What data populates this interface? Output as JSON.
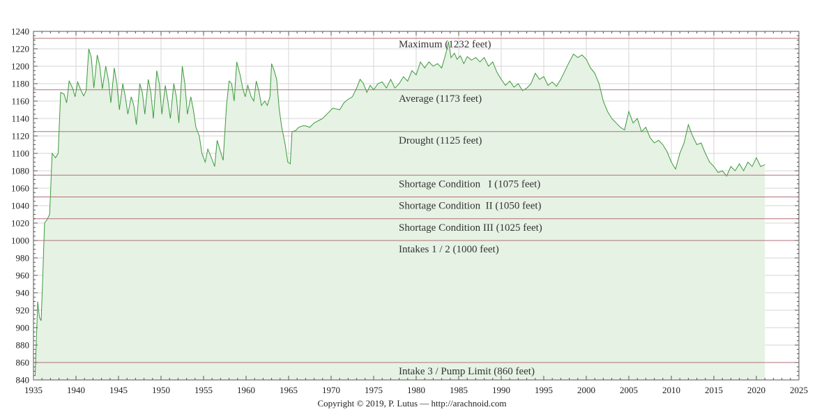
{
  "chart_data": {
    "type": "area",
    "title": "",
    "xlabel": "",
    "ylabel": "",
    "xlim": [
      1935,
      2025
    ],
    "ylim": [
      840,
      1240
    ],
    "x_ticks": [
      1935,
      1940,
      1945,
      1950,
      1955,
      1960,
      1965,
      1970,
      1975,
      1980,
      1985,
      1990,
      1995,
      2000,
      2005,
      2010,
      2015,
      2020,
      2025
    ],
    "y_ticks": [
      840,
      860,
      880,
      900,
      920,
      940,
      960,
      980,
      1000,
      1020,
      1040,
      1060,
      1080,
      1100,
      1120,
      1140,
      1160,
      1180,
      1200,
      1220,
      1240
    ],
    "grid": true,
    "line_color": "#3c9a3c",
    "fill_color": "#e6f2e4",
    "reference_line_color": "#b07078",
    "reference_lines": [
      {
        "value": 1232,
        "label": "Maximum (1232 feet)"
      },
      {
        "value": 1173,
        "label": "Average (1173 feet)"
      },
      {
        "value": 1125,
        "label": "Drought (1125 feet)"
      },
      {
        "value": 1075,
        "label": "Shortage Condition   I (1075 feet)"
      },
      {
        "value": 1050,
        "label": "Shortage Condition  II (1050 feet)"
      },
      {
        "value": 1025,
        "label": "Shortage Condition III (1025 feet)"
      },
      {
        "value": 1000,
        "label": "Intakes 1 / 2 (1000 feet)"
      },
      {
        "value": 860,
        "label": "Intake 3 / Pump Limit (860 feet)"
      }
    ],
    "series": [
      {
        "points": [
          [
            1935.2,
            845
          ],
          [
            1935.5,
            930
          ],
          [
            1935.7,
            912
          ],
          [
            1935.9,
            908
          ],
          [
            1936.1,
            960
          ],
          [
            1936.3,
            1020
          ],
          [
            1936.6,
            1024
          ],
          [
            1936.9,
            1030
          ],
          [
            1937.2,
            1100
          ],
          [
            1937.6,
            1095
          ],
          [
            1937.9,
            1100
          ],
          [
            1938.2,
            1170
          ],
          [
            1938.6,
            1168
          ],
          [
            1938.9,
            1158
          ],
          [
            1939.2,
            1183
          ],
          [
            1939.6,
            1175
          ],
          [
            1939.9,
            1165
          ],
          [
            1940.2,
            1182
          ],
          [
            1940.6,
            1172
          ],
          [
            1940.9,
            1166
          ],
          [
            1941.2,
            1172
          ],
          [
            1941.5,
            1220
          ],
          [
            1941.8,
            1210
          ],
          [
            1942.1,
            1175
          ],
          [
            1942.5,
            1213
          ],
          [
            1942.8,
            1200
          ],
          [
            1943.1,
            1174
          ],
          [
            1943.5,
            1200
          ],
          [
            1943.8,
            1185
          ],
          [
            1944.1,
            1158
          ],
          [
            1944.5,
            1198
          ],
          [
            1944.8,
            1180
          ],
          [
            1945.1,
            1150
          ],
          [
            1945.5,
            1180
          ],
          [
            1945.8,
            1165
          ],
          [
            1946.1,
            1145
          ],
          [
            1946.5,
            1165
          ],
          [
            1946.8,
            1155
          ],
          [
            1947.1,
            1133
          ],
          [
            1947.5,
            1180
          ],
          [
            1947.8,
            1170
          ],
          [
            1948.1,
            1145
          ],
          [
            1948.5,
            1185
          ],
          [
            1948.8,
            1170
          ],
          [
            1949.1,
            1140
          ],
          [
            1949.5,
            1195
          ],
          [
            1949.8,
            1180
          ],
          [
            1950.1,
            1145
          ],
          [
            1950.5,
            1178
          ],
          [
            1950.8,
            1160
          ],
          [
            1951.1,
            1140
          ],
          [
            1951.5,
            1180
          ],
          [
            1951.8,
            1165
          ],
          [
            1952.1,
            1135
          ],
          [
            1952.5,
            1200
          ],
          [
            1952.8,
            1180
          ],
          [
            1953.1,
            1145
          ],
          [
            1953.5,
            1165
          ],
          [
            1953.8,
            1150
          ],
          [
            1954.1,
            1130
          ],
          [
            1954.5,
            1120
          ],
          [
            1954.8,
            1100
          ],
          [
            1955.2,
            1090
          ],
          [
            1955.5,
            1105
          ],
          [
            1955.8,
            1098
          ],
          [
            1956.3,
            1085
          ],
          [
            1956.6,
            1115
          ],
          [
            1956.9,
            1105
          ],
          [
            1957.3,
            1092
          ],
          [
            1957.7,
            1155
          ],
          [
            1958.0,
            1183
          ],
          [
            1958.3,
            1180
          ],
          [
            1958.6,
            1160
          ],
          [
            1958.9,
            1205
          ],
          [
            1959.3,
            1190
          ],
          [
            1959.6,
            1175
          ],
          [
            1959.9,
            1165
          ],
          [
            1960.2,
            1178
          ],
          [
            1960.6,
            1165
          ],
          [
            1960.9,
            1160
          ],
          [
            1961.2,
            1183
          ],
          [
            1961.5,
            1172
          ],
          [
            1961.8,
            1155
          ],
          [
            1962.2,
            1160
          ],
          [
            1962.5,
            1155
          ],
          [
            1962.8,
            1165
          ],
          [
            1963.0,
            1203
          ],
          [
            1963.3,
            1195
          ],
          [
            1963.6,
            1185
          ],
          [
            1963.9,
            1150
          ],
          [
            1964.2,
            1130
          ],
          [
            1964.6,
            1110
          ],
          [
            1964.9,
            1090
          ],
          [
            1965.2,
            1088
          ],
          [
            1965.4,
            1125
          ],
          [
            1965.8,
            1126
          ],
          [
            1966.2,
            1130
          ],
          [
            1966.8,
            1132
          ],
          [
            1967.5,
            1130
          ],
          [
            1968,
            1135
          ],
          [
            1969,
            1140
          ],
          [
            1969.5,
            1145
          ],
          [
            1970.2,
            1152
          ],
          [
            1971,
            1150
          ],
          [
            1971.5,
            1158
          ],
          [
            1972,
            1162
          ],
          [
            1972.5,
            1165
          ],
          [
            1973,
            1175
          ],
          [
            1973.4,
            1185
          ],
          [
            1973.8,
            1180
          ],
          [
            1974.2,
            1170
          ],
          [
            1974.6,
            1178
          ],
          [
            1975,
            1173
          ],
          [
            1975.5,
            1180
          ],
          [
            1976,
            1182
          ],
          [
            1976.5,
            1175
          ],
          [
            1977,
            1185
          ],
          [
            1977.5,
            1175
          ],
          [
            1978,
            1180
          ],
          [
            1978.5,
            1188
          ],
          [
            1979,
            1183
          ],
          [
            1979.5,
            1195
          ],
          [
            1980,
            1190
          ],
          [
            1980.5,
            1205
          ],
          [
            1981,
            1198
          ],
          [
            1981.5,
            1205
          ],
          [
            1982,
            1200
          ],
          [
            1982.5,
            1203
          ],
          [
            1983,
            1198
          ],
          [
            1983.5,
            1215
          ],
          [
            1983.8,
            1228
          ],
          [
            1984.1,
            1210
          ],
          [
            1984.5,
            1215
          ],
          [
            1984.8,
            1208
          ],
          [
            1985.2,
            1212
          ],
          [
            1985.6,
            1203
          ],
          [
            1986,
            1211
          ],
          [
            1986.5,
            1207
          ],
          [
            1987,
            1210
          ],
          [
            1987.5,
            1205
          ],
          [
            1988,
            1210
          ],
          [
            1988.5,
            1200
          ],
          [
            1989,
            1205
          ],
          [
            1989.5,
            1193
          ],
          [
            1990,
            1185
          ],
          [
            1990.5,
            1178
          ],
          [
            1991,
            1183
          ],
          [
            1991.5,
            1176
          ],
          [
            1992,
            1180
          ],
          [
            1992.5,
            1172
          ],
          [
            1993,
            1175
          ],
          [
            1993.5,
            1180
          ],
          [
            1994,
            1192
          ],
          [
            1994.5,
            1185
          ],
          [
            1995,
            1188
          ],
          [
            1995.5,
            1178
          ],
          [
            1996,
            1182
          ],
          [
            1996.5,
            1177
          ],
          [
            1997,
            1185
          ],
          [
            1997.5,
            1195
          ],
          [
            1998,
            1205
          ],
          [
            1998.5,
            1214
          ],
          [
            1999,
            1210
          ],
          [
            1999.5,
            1213
          ],
          [
            2000,
            1208
          ],
          [
            2000.5,
            1198
          ],
          [
            2001,
            1192
          ],
          [
            2001.5,
            1180
          ],
          [
            2002,
            1160
          ],
          [
            2002.5,
            1148
          ],
          [
            2003,
            1140
          ],
          [
            2003.5,
            1135
          ],
          [
            2004,
            1130
          ],
          [
            2004.5,
            1127
          ],
          [
            2005,
            1148
          ],
          [
            2005.5,
            1135
          ],
          [
            2006,
            1140
          ],
          [
            2006.5,
            1125
          ],
          [
            2007,
            1130
          ],
          [
            2007.5,
            1118
          ],
          [
            2008,
            1112
          ],
          [
            2008.5,
            1115
          ],
          [
            2009,
            1110
          ],
          [
            2009.5,
            1102
          ],
          [
            2010,
            1090
          ],
          [
            2010.5,
            1082
          ],
          [
            2011,
            1100
          ],
          [
            2011.5,
            1112
          ],
          [
            2012,
            1133
          ],
          [
            2012.5,
            1120
          ],
          [
            2013,
            1110
          ],
          [
            2013.5,
            1112
          ],
          [
            2014,
            1100
          ],
          [
            2014.5,
            1090
          ],
          [
            2015,
            1085
          ],
          [
            2015.5,
            1078
          ],
          [
            2016,
            1080
          ],
          [
            2016.5,
            1074
          ],
          [
            2017,
            1085
          ],
          [
            2017.5,
            1080
          ],
          [
            2018,
            1088
          ],
          [
            2018.5,
            1080
          ],
          [
            2019,
            1090
          ],
          [
            2019.5,
            1085
          ],
          [
            2020,
            1095
          ],
          [
            2020.5,
            1085
          ],
          [
            2021.0,
            1087
          ]
        ]
      }
    ]
  },
  "footer": {
    "copyright": "Copyright © 2019, P. Lutus — http://arachnoid.com"
  }
}
